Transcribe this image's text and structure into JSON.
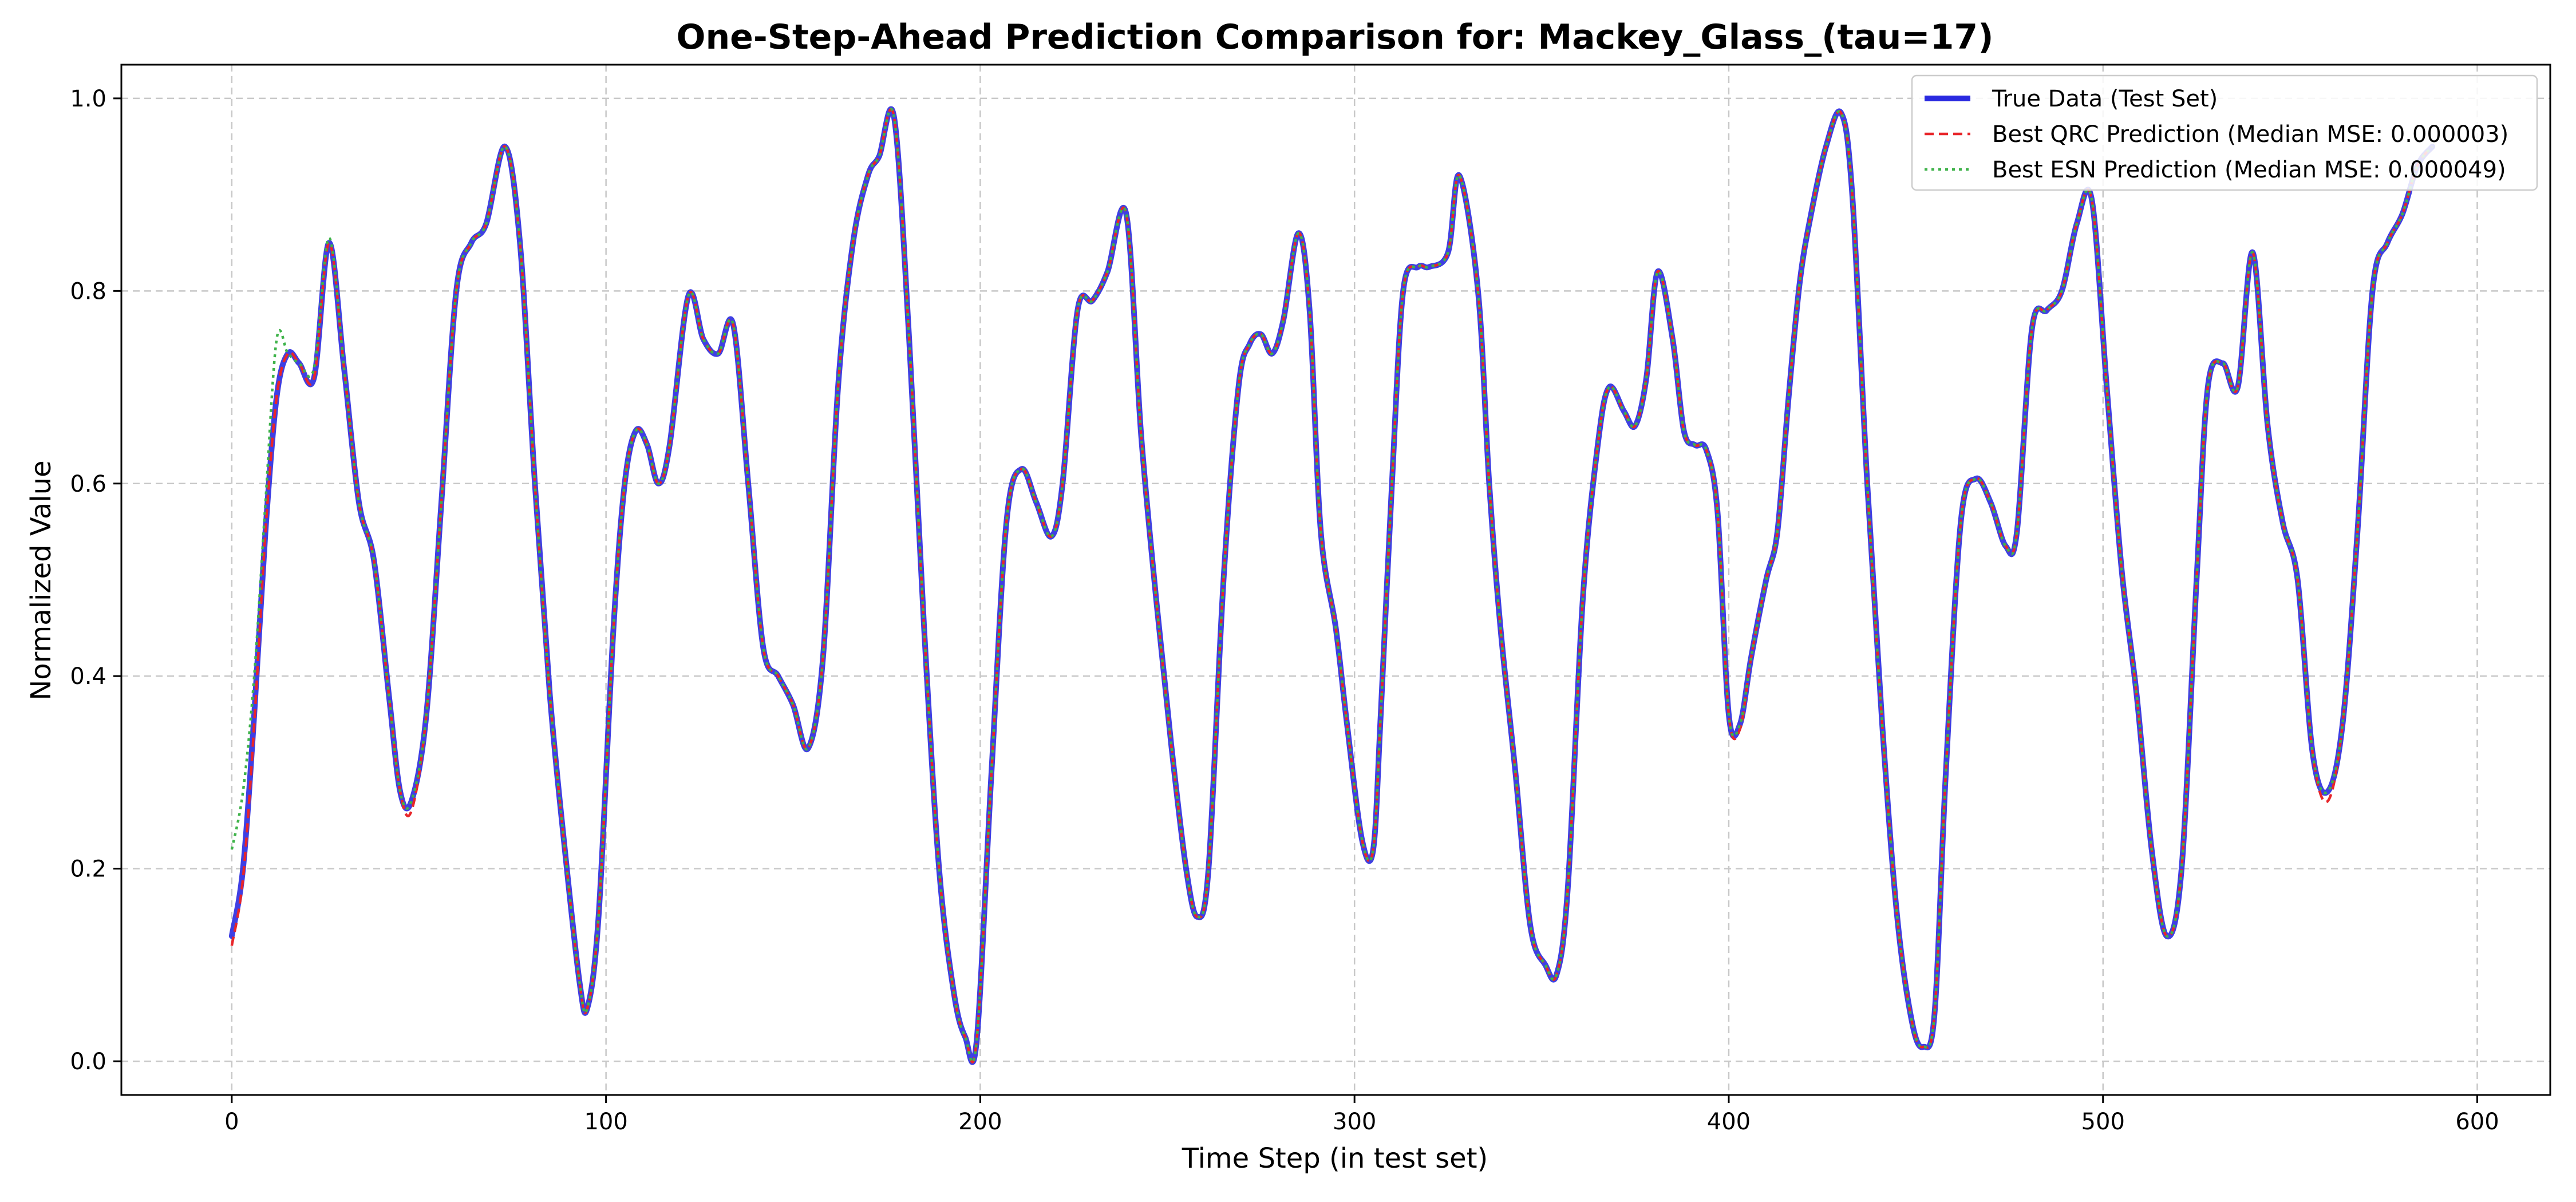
{
  "chart_data": {
    "type": "line",
    "title": "One-Step-Ahead Prediction Comparison for: Mackey_Glass_(tau=17)",
    "xlabel": "Time Step (in test set)",
    "ylabel": "Normalized Value",
    "xlim": [
      -29.5,
      619.5
    ],
    "ylim": [
      -0.035,
      1.035
    ],
    "xticks": [
      0,
      100,
      200,
      300,
      400,
      500,
      600
    ],
    "yticks": [
      0.0,
      0.2,
      0.4,
      0.6,
      0.8,
      1.0
    ],
    "xtick_labels": [
      "0",
      "100",
      "200",
      "300",
      "400",
      "500",
      "600"
    ],
    "ytick_labels": [
      "0.0",
      "0.2",
      "0.4",
      "0.6",
      "0.8",
      "1.0"
    ],
    "grid": true,
    "legend_position": "top-right",
    "keypoints": {
      "x": [
        0,
        3,
        6,
        9,
        12,
        15,
        18,
        22,
        26,
        30,
        34,
        38,
        42,
        45,
        48,
        52,
        56,
        60,
        64,
        68,
        73,
        77,
        81,
        85,
        89,
        93,
        95,
        98,
        102,
        105,
        108,
        111,
        114,
        117,
        122,
        126,
        130,
        134,
        138,
        142,
        146,
        150,
        154,
        158,
        162,
        166,
        170,
        173,
        177,
        181,
        185,
        189,
        193,
        196,
        199,
        203,
        207,
        211,
        215,
        219,
        222,
        226,
        230,
        234,
        239,
        243,
        247,
        251,
        255,
        258,
        261,
        265,
        269,
        272,
        275,
        278,
        281,
        285,
        288,
        291,
        295,
        298,
        302,
        305,
        307,
        310,
        313,
        317,
        320,
        325,
        328,
        333,
        336,
        339,
        343,
        347,
        351,
        354,
        357,
        361,
        365,
        368,
        372,
        375,
        378,
        381,
        385,
        388,
        391,
        394,
        397,
        400,
        403,
        406,
        410,
        413,
        416,
        419,
        422,
        426,
        430,
        433,
        437,
        441,
        445,
        449,
        452,
        455,
        458,
        462,
        466,
        470,
        474,
        477,
        481,
        485,
        489,
        493,
        497,
        501,
        505,
        509,
        513,
        517,
        521,
        525,
        528,
        532,
        536,
        540,
        544,
        548,
        552,
        556,
        560,
        564,
        568,
        572,
        576,
        580,
        584,
        588
      ],
      "true": [
        0.13,
        0.2,
        0.36,
        0.55,
        0.69,
        0.735,
        0.725,
        0.71,
        0.85,
        0.72,
        0.58,
        0.52,
        0.38,
        0.28,
        0.27,
        0.36,
        0.58,
        0.8,
        0.85,
        0.87,
        0.95,
        0.85,
        0.6,
        0.38,
        0.22,
        0.08,
        0.055,
        0.15,
        0.45,
        0.6,
        0.655,
        0.64,
        0.6,
        0.64,
        0.795,
        0.75,
        0.735,
        0.765,
        0.6,
        0.43,
        0.4,
        0.37,
        0.325,
        0.42,
        0.7,
        0.85,
        0.92,
        0.94,
        0.98,
        0.75,
        0.45,
        0.2,
        0.07,
        0.025,
        0.02,
        0.3,
        0.56,
        0.615,
        0.58,
        0.545,
        0.6,
        0.78,
        0.79,
        0.82,
        0.88,
        0.65,
        0.48,
        0.33,
        0.2,
        0.15,
        0.2,
        0.5,
        0.7,
        0.745,
        0.755,
        0.735,
        0.77,
        0.86,
        0.78,
        0.55,
        0.45,
        0.35,
        0.23,
        0.22,
        0.36,
        0.6,
        0.8,
        0.825,
        0.825,
        0.84,
        0.92,
        0.8,
        0.6,
        0.45,
        0.3,
        0.14,
        0.1,
        0.09,
        0.18,
        0.48,
        0.64,
        0.7,
        0.675,
        0.66,
        0.71,
        0.82,
        0.75,
        0.655,
        0.64,
        0.635,
        0.57,
        0.36,
        0.35,
        0.42,
        0.5,
        0.55,
        0.69,
        0.81,
        0.88,
        0.95,
        0.985,
        0.9,
        0.6,
        0.35,
        0.15,
        0.04,
        0.015,
        0.05,
        0.3,
        0.56,
        0.605,
        0.58,
        0.535,
        0.55,
        0.76,
        0.78,
        0.8,
        0.87,
        0.895,
        0.7,
        0.51,
        0.38,
        0.22,
        0.13,
        0.2,
        0.5,
        0.7,
        0.725,
        0.7,
        0.84,
        0.66,
        0.56,
        0.5,
        0.32,
        0.28,
        0.35,
        0.55,
        0.8,
        0.85,
        0.88,
        0.93,
        0.95
      ],
      "qrc": [
        0.12,
        0.19,
        0.35,
        0.55,
        0.69,
        0.735,
        0.725,
        0.71,
        0.85,
        0.72,
        0.58,
        0.52,
        0.38,
        0.28,
        0.26,
        0.36,
        0.58,
        0.8,
        0.85,
        0.87,
        0.95,
        0.85,
        0.6,
        0.38,
        0.22,
        0.08,
        0.055,
        0.15,
        0.45,
        0.6,
        0.655,
        0.64,
        0.6,
        0.64,
        0.795,
        0.75,
        0.735,
        0.765,
        0.6,
        0.43,
        0.4,
        0.37,
        0.325,
        0.42,
        0.7,
        0.85,
        0.92,
        0.94,
        0.98,
        0.75,
        0.45,
        0.2,
        0.07,
        0.025,
        0.02,
        0.3,
        0.56,
        0.615,
        0.58,
        0.545,
        0.6,
        0.78,
        0.79,
        0.82,
        0.88,
        0.65,
        0.48,
        0.33,
        0.2,
        0.15,
        0.2,
        0.5,
        0.7,
        0.745,
        0.755,
        0.735,
        0.77,
        0.86,
        0.78,
        0.55,
        0.45,
        0.35,
        0.23,
        0.22,
        0.36,
        0.6,
        0.8,
        0.825,
        0.825,
        0.84,
        0.92,
        0.8,
        0.6,
        0.45,
        0.3,
        0.14,
        0.1,
        0.09,
        0.18,
        0.48,
        0.64,
        0.7,
        0.675,
        0.66,
        0.71,
        0.82,
        0.75,
        0.655,
        0.64,
        0.635,
        0.57,
        0.36,
        0.345,
        0.42,
        0.5,
        0.55,
        0.69,
        0.81,
        0.88,
        0.95,
        0.985,
        0.9,
        0.6,
        0.35,
        0.15,
        0.04,
        0.015,
        0.05,
        0.3,
        0.56,
        0.605,
        0.58,
        0.535,
        0.55,
        0.76,
        0.78,
        0.8,
        0.87,
        0.895,
        0.7,
        0.51,
        0.38,
        0.22,
        0.13,
        0.2,
        0.5,
        0.7,
        0.725,
        0.7,
        0.84,
        0.66,
        0.56,
        0.5,
        0.32,
        0.27,
        0.35,
        0.55,
        0.8,
        0.85,
        0.88,
        0.93,
        0.95
      ],
      "esn": [
        0.22,
        0.28,
        0.4,
        0.58,
        0.75,
        0.735,
        0.725,
        0.72,
        0.855,
        0.72,
        0.58,
        0.52,
        0.38,
        0.28,
        0.27,
        0.36,
        0.58,
        0.8,
        0.85,
        0.87,
        0.95,
        0.85,
        0.6,
        0.38,
        0.22,
        0.08,
        0.055,
        0.15,
        0.45,
        0.6,
        0.655,
        0.64,
        0.6,
        0.64,
        0.795,
        0.75,
        0.735,
        0.765,
        0.6,
        0.43,
        0.4,
        0.37,
        0.325,
        0.42,
        0.7,
        0.85,
        0.92,
        0.94,
        0.98,
        0.75,
        0.45,
        0.2,
        0.07,
        0.025,
        0.02,
        0.3,
        0.56,
        0.615,
        0.58,
        0.545,
        0.6,
        0.78,
        0.79,
        0.82,
        0.88,
        0.65,
        0.48,
        0.33,
        0.2,
        0.15,
        0.2,
        0.5,
        0.7,
        0.745,
        0.755,
        0.735,
        0.77,
        0.86,
        0.78,
        0.55,
        0.45,
        0.35,
        0.23,
        0.22,
        0.36,
        0.6,
        0.8,
        0.825,
        0.825,
        0.84,
        0.92,
        0.8,
        0.6,
        0.45,
        0.3,
        0.14,
        0.1,
        0.09,
        0.18,
        0.48,
        0.64,
        0.7,
        0.675,
        0.66,
        0.71,
        0.82,
        0.75,
        0.655,
        0.64,
        0.635,
        0.57,
        0.36,
        0.35,
        0.42,
        0.5,
        0.55,
        0.69,
        0.81,
        0.88,
        0.95,
        0.985,
        0.9,
        0.6,
        0.35,
        0.15,
        0.04,
        0.015,
        0.05,
        0.3,
        0.56,
        0.605,
        0.58,
        0.535,
        0.55,
        0.76,
        0.78,
        0.8,
        0.87,
        0.895,
        0.7,
        0.51,
        0.38,
        0.22,
        0.13,
        0.2,
        0.5,
        0.7,
        0.725,
        0.7,
        0.84,
        0.66,
        0.56,
        0.5,
        0.32,
        0.28,
        0.35,
        0.55,
        0.8,
        0.85,
        0.88,
        0.93,
        0.95
      ]
    },
    "series": [
      {
        "name": "True Data (Test Set)",
        "key": "true",
        "color": "#2a2ae0",
        "style": "solid"
      },
      {
        "name": "Best QRC Prediction (Median MSE: 0.000003)",
        "key": "qrc",
        "color": "#e8262a",
        "style": "dashed"
      },
      {
        "name": "Best ESN Prediction (Median MSE: 0.000049)",
        "key": "esn",
        "color": "#3fb34a",
        "style": "dotted"
      }
    ]
  }
}
